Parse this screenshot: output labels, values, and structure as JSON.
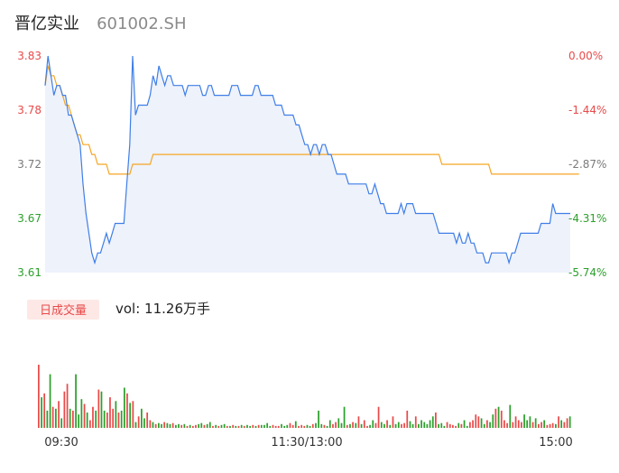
{
  "header": {
    "name": "晋亿实业",
    "code": "601002.SH"
  },
  "colors": {
    "price_line": "#3f7ee8",
    "avg_line": "#f5a623",
    "area_fill": "#eef2fb",
    "up": "#e84a4a",
    "down": "#2ca02c",
    "neutral_tick": "#7a7a7a",
    "badge_bg": "#fde8e6",
    "badge_text": "#e84a4a"
  },
  "chart_data": [
    {
      "type": "line",
      "name": "intraday-price",
      "y_ticks_left": [
        "3.83",
        "3.78",
        "3.72",
        "3.67",
        "3.61"
      ],
      "y_ticks_right": [
        "0.00%",
        "-1.44%",
        "-2.87%",
        "-4.31%",
        "-5.74%"
      ],
      "ylim": [
        3.61,
        3.83
      ],
      "x_ticks": [
        "09:30",
        "11:30/13:00",
        "15:00"
      ],
      "series": [
        {
          "values": [
            3.8,
            3.83,
            3.81,
            3.79,
            3.8,
            3.8,
            3.79,
            3.79,
            3.77,
            3.77,
            3.76,
            3.75,
            3.74,
            3.7,
            3.67,
            3.65,
            3.63,
            3.62,
            3.63,
            3.63,
            3.64,
            3.65,
            3.64,
            3.65,
            3.66,
            3.66,
            3.66,
            3.66,
            3.7,
            3.74,
            3.83,
            3.77,
            3.78,
            3.78,
            3.78,
            3.78,
            3.79,
            3.81,
            3.8,
            3.82,
            3.81,
            3.8,
            3.81,
            3.81,
            3.8,
            3.8,
            3.8,
            3.8,
            3.79,
            3.8,
            3.8,
            3.8,
            3.8,
            3.8,
            3.79,
            3.79,
            3.8,
            3.8,
            3.79,
            3.79,
            3.79,
            3.79,
            3.79,
            3.79,
            3.8,
            3.8,
            3.8,
            3.79,
            3.79,
            3.79,
            3.79,
            3.79,
            3.8,
            3.8,
            3.79,
            3.79,
            3.79,
            3.79,
            3.79,
            3.78,
            3.78,
            3.78,
            3.77,
            3.77,
            3.77,
            3.77,
            3.76,
            3.76,
            3.75,
            3.74,
            3.74,
            3.73,
            3.74,
            3.74,
            3.73,
            3.74,
            3.74,
            3.73,
            3.73,
            3.72,
            3.71,
            3.71,
            3.71,
            3.71,
            3.7,
            3.7,
            3.7,
            3.7,
            3.7,
            3.7,
            3.7,
            3.69,
            3.69,
            3.7,
            3.69,
            3.68,
            3.68,
            3.67,
            3.67,
            3.67,
            3.67,
            3.67,
            3.68,
            3.67,
            3.68,
            3.68,
            3.68,
            3.67,
            3.67,
            3.67,
            3.67,
            3.67,
            3.67,
            3.67,
            3.66,
            3.65,
            3.65,
            3.65,
            3.65,
            3.65,
            3.65,
            3.64,
            3.65,
            3.64,
            3.64,
            3.65,
            3.64,
            3.64,
            3.63,
            3.63,
            3.63,
            3.62,
            3.62,
            3.63,
            3.63,
            3.63,
            3.63,
            3.63,
            3.63,
            3.62,
            3.63,
            3.63,
            3.64,
            3.65,
            3.65,
            3.65,
            3.65,
            3.65,
            3.65,
            3.65,
            3.66,
            3.66,
            3.66,
            3.66,
            3.68,
            3.67,
            3.67,
            3.67,
            3.67,
            3.67,
            3.67
          ]
        },
        {
          "values": [
            3.8,
            3.82,
            3.81,
            3.81,
            3.8,
            3.8,
            3.79,
            3.78,
            3.78,
            3.77,
            3.76,
            3.75,
            3.75,
            3.74,
            3.74,
            3.74,
            3.73,
            3.73,
            3.72,
            3.72,
            3.72,
            3.72,
            3.71,
            3.71,
            3.71,
            3.71,
            3.71,
            3.71,
            3.71,
            3.71,
            3.72,
            3.72,
            3.72,
            3.72,
            3.72,
            3.72,
            3.72,
            3.73,
            3.73,
            3.73,
            3.73,
            3.73,
            3.73,
            3.73,
            3.73,
            3.73,
            3.73,
            3.73,
            3.73,
            3.73,
            3.73,
            3.73,
            3.73,
            3.73,
            3.73,
            3.73,
            3.73,
            3.73,
            3.73,
            3.73,
            3.73,
            3.73,
            3.73,
            3.73,
            3.73,
            3.73,
            3.73,
            3.73,
            3.73,
            3.73,
            3.73,
            3.73,
            3.73,
            3.73,
            3.73,
            3.73,
            3.73,
            3.73,
            3.73,
            3.73,
            3.73,
            3.73,
            3.73,
            3.73,
            3.73,
            3.73,
            3.73,
            3.73,
            3.73,
            3.73,
            3.73,
            3.73,
            3.73,
            3.73,
            3.73,
            3.73,
            3.73,
            3.73,
            3.73,
            3.73,
            3.73,
            3.73,
            3.73,
            3.73,
            3.73,
            3.73,
            3.73,
            3.73,
            3.73,
            3.73,
            3.73,
            3.73,
            3.73,
            3.73,
            3.73,
            3.73,
            3.73,
            3.73,
            3.73,
            3.73,
            3.73,
            3.73,
            3.73,
            3.73,
            3.73,
            3.73,
            3.73,
            3.73,
            3.73,
            3.73,
            3.73,
            3.73,
            3.73,
            3.73,
            3.73,
            3.73,
            3.72,
            3.72,
            3.72,
            3.72,
            3.72,
            3.72,
            3.72,
            3.72,
            3.72,
            3.72,
            3.72,
            3.72,
            3.72,
            3.72,
            3.72,
            3.72,
            3.72,
            3.71,
            3.71,
            3.71,
            3.71,
            3.71,
            3.71,
            3.71,
            3.71,
            3.71,
            3.71,
            3.71,
            3.71,
            3.71,
            3.71,
            3.71,
            3.71,
            3.71,
            3.71,
            3.71,
            3.71,
            3.71,
            3.71,
            3.71,
            3.71,
            3.71,
            3.71,
            3.71,
            3.71,
            3.71,
            3.71,
            3.71
          ]
        }
      ]
    },
    {
      "type": "bar",
      "name": "volume",
      "badge": "日成交量",
      "vol_text": "vol: 11.26万手",
      "volumes": [
        0.66,
        0.32,
        0.36,
        0.18,
        0.56,
        0.22,
        0.2,
        0.28,
        0.1,
        0.38,
        0.46,
        0.2,
        0.18,
        0.56,
        0.14,
        0.3,
        0.25,
        0.16,
        0.08,
        0.22,
        0.18,
        0.4,
        0.38,
        0.18,
        0.16,
        0.32,
        0.2,
        0.28,
        0.16,
        0.18,
        0.42,
        0.36,
        0.26,
        0.28,
        0.06,
        0.12,
        0.2,
        0.1,
        0.16,
        0.08,
        0.06,
        0.04,
        0.05,
        0.04,
        0.06,
        0.05,
        0.04,
        0.05,
        0.03,
        0.04,
        0.03,
        0.04,
        0.02,
        0.03,
        0.02,
        0.03,
        0.04,
        0.05,
        0.03,
        0.04,
        0.06,
        0.02,
        0.03,
        0.02,
        0.03,
        0.04,
        0.02,
        0.02,
        0.03,
        0.02,
        0.02,
        0.03,
        0.02,
        0.03,
        0.02,
        0.03,
        0.02,
        0.03,
        0.03,
        0.03,
        0.05,
        0.02,
        0.03,
        0.02,
        0.02,
        0.04,
        0.02,
        0.03,
        0.05,
        0.03,
        0.07,
        0.02,
        0.03,
        0.02,
        0.03,
        0.02,
        0.04,
        0.05,
        0.18,
        0.04,
        0.03,
        0.02,
        0.08,
        0.04,
        0.06,
        0.1,
        0.05,
        0.22,
        0.03,
        0.04,
        0.06,
        0.05,
        0.12,
        0.04,
        0.08,
        0.02,
        0.03,
        0.08,
        0.05,
        0.22,
        0.06,
        0.04,
        0.08,
        0.03,
        0.12,
        0.04,
        0.06,
        0.04,
        0.05,
        0.18,
        0.07,
        0.04,
        0.12,
        0.04,
        0.08,
        0.06,
        0.04,
        0.08,
        0.12,
        0.16,
        0.04,
        0.05,
        0.02,
        0.06,
        0.04,
        0.03,
        0.02,
        0.05,
        0.04,
        0.08,
        0.02,
        0.06,
        0.08,
        0.14,
        0.12,
        0.1,
        0.04,
        0.08,
        0.06,
        0.14,
        0.2,
        0.22,
        0.18,
        0.08,
        0.05,
        0.24,
        0.06,
        0.12,
        0.08,
        0.06,
        0.14,
        0.08,
        0.12,
        0.06,
        0.1,
        0.04,
        0.06,
        0.08,
        0.03,
        0.04,
        0.05,
        0.04,
        0.12,
        0.08,
        0.06,
        0.1,
        0.12
      ],
      "directions": [
        1,
        0,
        1,
        0,
        0,
        1,
        0,
        1,
        0,
        1,
        1,
        0,
        1,
        0,
        0,
        0,
        1,
        0,
        1,
        1,
        0,
        1,
        0,
        0,
        1,
        1,
        1,
        0,
        1,
        0,
        0,
        1,
        0,
        1,
        0,
        1,
        0,
        0,
        1,
        1,
        0,
        1,
        0,
        0,
        1,
        0,
        0,
        1,
        0,
        0,
        1,
        0,
        1,
        0,
        1,
        1,
        0,
        0,
        1,
        0,
        0,
        1,
        0,
        1,
        0,
        0,
        1,
        0,
        1,
        0,
        1,
        0,
        1,
        0,
        0,
        1,
        0,
        1,
        0,
        0,
        0,
        0,
        1,
        1,
        1,
        0,
        0,
        0,
        1,
        1,
        0,
        1,
        1,
        1,
        0,
        0,
        1,
        0,
        0,
        0,
        1,
        0,
        0,
        1,
        1,
        0,
        0,
        0,
        1,
        0,
        1,
        0,
        1,
        0,
        1,
        1,
        0,
        0,
        1,
        1,
        0,
        0,
        1,
        0,
        1,
        0,
        0,
        1,
        1,
        1,
        0,
        0,
        1,
        0,
        0,
        0,
        0,
        0,
        0,
        1,
        0,
        0,
        0,
        1,
        1,
        1,
        1,
        0,
        1,
        0,
        0,
        1,
        1,
        1,
        1,
        0,
        0,
        1,
        0,
        0,
        1,
        0,
        1,
        1,
        1,
        0,
        1,
        1,
        1,
        1,
        0,
        0,
        0,
        1,
        0,
        1,
        1,
        0,
        1,
        1,
        1,
        0,
        1,
        0,
        1,
        1,
        0,
        1,
        0,
        1,
        0,
        1
      ]
    }
  ]
}
